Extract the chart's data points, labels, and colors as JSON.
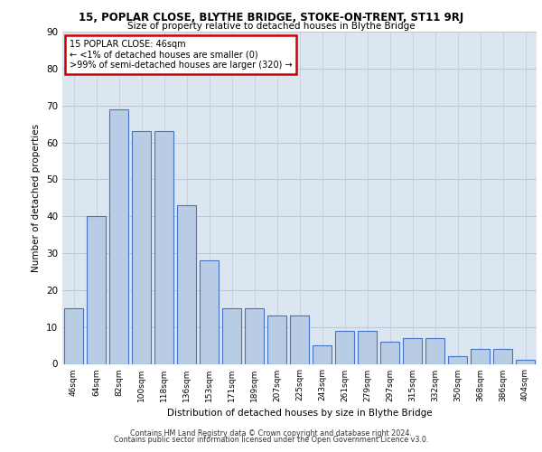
{
  "title_line1": "15, POPLAR CLOSE, BLYTHE BRIDGE, STOKE-ON-TRENT, ST11 9RJ",
  "title_line2": "Size of property relative to detached houses in Blythe Bridge",
  "xlabel": "Distribution of detached houses by size in Blythe Bridge",
  "ylabel": "Number of detached properties",
  "categories": [
    "46sqm",
    "64sqm",
    "82sqm",
    "100sqm",
    "118sqm",
    "136sqm",
    "153sqm",
    "171sqm",
    "189sqm",
    "207sqm",
    "225sqm",
    "243sqm",
    "261sqm",
    "279sqm",
    "297sqm",
    "315sqm",
    "332sqm",
    "350sqm",
    "368sqm",
    "386sqm",
    "404sqm"
  ],
  "values": [
    15,
    40,
    69,
    63,
    63,
    43,
    28,
    15,
    15,
    13,
    13,
    5,
    9,
    9,
    6,
    7,
    7,
    2,
    4,
    4,
    1
  ],
  "bar_color": "#b8cce4",
  "bar_edge_color": "#4472c4",
  "bar_linewidth": 0.8,
  "ylim": [
    0,
    90
  ],
  "yticks": [
    0,
    10,
    20,
    30,
    40,
    50,
    60,
    70,
    80,
    90
  ],
  "grid_color": "#c0c8d8",
  "background_color": "#dce6f1",
  "annotation_line1": "15 POPLAR CLOSE: 46sqm",
  "annotation_line2": "← <1% of detached houses are smaller (0)",
  "annotation_line3": ">99% of semi-detached houses are larger (320) →",
  "annotation_box_color": "#ffffff",
  "annotation_border_color": "#cc0000",
  "footer_line1": "Contains HM Land Registry data © Crown copyright and database right 2024.",
  "footer_line2": "Contains public sector information licensed under the Open Government Licence v3.0."
}
